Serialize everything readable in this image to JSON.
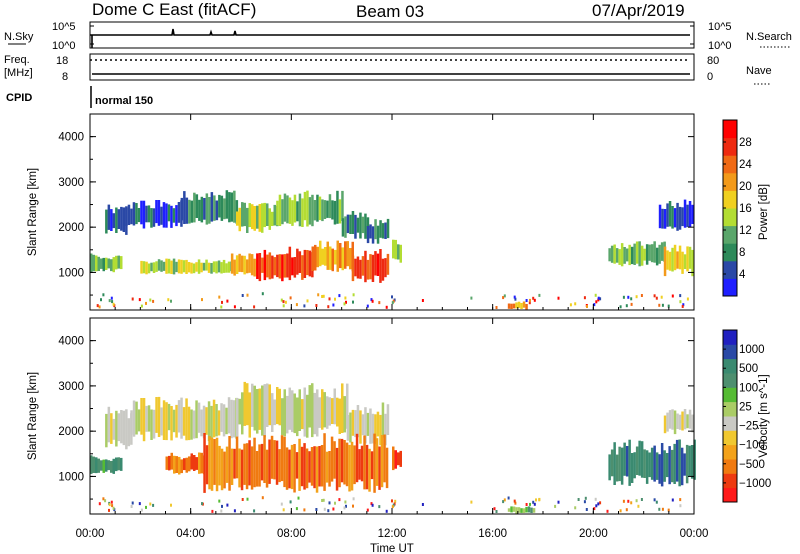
{
  "header": {
    "station": "Dome C East (fitACF)",
    "beam": "Beam 03",
    "date": "07/Apr/2019"
  },
  "top_panels": {
    "nsky_label": "N.Sky",
    "nsky_tick_top": "10^5",
    "nsky_tick_bottom": "10^0",
    "nsearch_label": "N.Search",
    "nsearch_tick_top": "10^5",
    "nsearch_tick_bottom": "10^0",
    "freq_label_1": "Freq.",
    "freq_label_2": "[MHz]",
    "freq_tick_top": "18",
    "freq_tick_bottom": "8",
    "nave_label": "Nave",
    "nave_tick_top": "80",
    "nave_tick_bottom": "0",
    "cpid_label": "CPID",
    "cpid_value": "normal 150"
  },
  "colors": {
    "power": [
      "#1f1fff",
      "#2a48a6",
      "#2d8a5a",
      "#5aa66b",
      "#b3dd33",
      "#f0d020",
      "#f39a1a",
      "#f06a15",
      "#ee2a10",
      "#ff0000"
    ],
    "velocity": [
      "#ff1a1a",
      "#ee3a10",
      "#f07a10",
      "#f3a21a",
      "#f0c830",
      "#c9c9c4",
      "#aacc66",
      "#55bb33",
      "#4d8f6f",
      "#3a8a70",
      "#2a4aa6",
      "#2020c0"
    ]
  },
  "chart_data": [
    {
      "type": "heatmap",
      "name": "power",
      "ylabel": "Slant Range [km]",
      "yticks": [
        "1000",
        "2000",
        "3000",
        "4000"
      ],
      "ylim": [
        170,
        4500
      ],
      "xlim": [
        0,
        24
      ],
      "colorbar_label": "Power [dB]",
      "colorbar_ticks": [
        "4",
        "8",
        "12",
        "16",
        "20",
        "24",
        "28"
      ],
      "regions": [
        {
          "x": [
            0.0,
            1.2
          ],
          "y": [
            1050,
            1350
          ],
          "level": 3
        },
        {
          "x": [
            0.6,
            1.4
          ],
          "y": [
            1900,
            2400
          ],
          "level": 1
        },
        {
          "x": [
            1.4,
            3.6
          ],
          "y": [
            2050,
            2500
          ],
          "level": 1
        },
        {
          "x": [
            3.6,
            5.8
          ],
          "y": [
            2150,
            2700
          ],
          "level": 2
        },
        {
          "x": [
            5.8,
            7.4
          ],
          "y": [
            1950,
            2450
          ],
          "level": 4
        },
        {
          "x": [
            7.4,
            10.0
          ],
          "y": [
            2100,
            2700
          ],
          "level": 3
        },
        {
          "x": [
            10.0,
            11.0
          ],
          "y": [
            1800,
            2300
          ],
          "level": 2
        },
        {
          "x": [
            11.0,
            11.8
          ],
          "y": [
            1700,
            2100
          ],
          "level": 2
        },
        {
          "x": [
            2.0,
            5.6
          ],
          "y": [
            1000,
            1250
          ],
          "level": 4
        },
        {
          "x": [
            5.6,
            6.6
          ],
          "y": [
            950,
            1350
          ],
          "level": 6
        },
        {
          "x": [
            6.6,
            8.8
          ],
          "y": [
            900,
            1450
          ],
          "level": 8
        },
        {
          "x": [
            8.8,
            10.4
          ],
          "y": [
            1100,
            1600
          ],
          "level": 6
        },
        {
          "x": [
            10.4,
            11.8
          ],
          "y": [
            850,
            1400
          ],
          "level": 8
        },
        {
          "x": [
            12.0,
            12.3
          ],
          "y": [
            1250,
            1650
          ],
          "level": 4
        },
        {
          "x": [
            20.6,
            22.8
          ],
          "y": [
            1200,
            1600
          ],
          "level": 3
        },
        {
          "x": [
            22.8,
            23.9
          ],
          "y": [
            1000,
            1500
          ],
          "level": 5
        },
        {
          "x": [
            22.6,
            23.9
          ],
          "y": [
            2000,
            2500
          ],
          "level": 1
        },
        {
          "x": [
            16.6,
            17.3
          ],
          "y": [
            200,
            330
          ],
          "level": 6
        }
      ]
    },
    {
      "type": "heatmap",
      "name": "velocity",
      "ylabel": "Slant Range [km]",
      "yticks": [
        "1000",
        "2000",
        "3000",
        "4000"
      ],
      "ylim": [
        170,
        4500
      ],
      "xlim": [
        0,
        24
      ],
      "xlabel": "Time UT",
      "xticks": [
        "00:00",
        "04:00",
        "08:00",
        "12:00",
        "16:00",
        "20:00",
        "00:00"
      ],
      "colorbar_label": "Velocity [m s^-1]",
      "colorbar_ticks": [
        "1000",
        "500",
        "100",
        "25",
        "−25",
        "−100",
        "−500",
        "−1000"
      ],
      "regions": [
        {
          "x": [
            0.0,
            1.2
          ],
          "y": [
            1100,
            1400
          ],
          "level": 8
        },
        {
          "x": [
            0.6,
            1.6
          ],
          "y": [
            1700,
            2400
          ],
          "level": 5
        },
        {
          "x": [
            1.6,
            5.8
          ],
          "y": [
            1900,
            2600
          ],
          "level": 5
        },
        {
          "x": [
            5.8,
            10.2
          ],
          "y": [
            2000,
            2900
          ],
          "level": 5
        },
        {
          "x": [
            10.2,
            11.8
          ],
          "y": [
            1800,
            2500
          ],
          "level": 5
        },
        {
          "x": [
            3.0,
            4.5
          ],
          "y": [
            1100,
            1450
          ],
          "level": 2
        },
        {
          "x": [
            4.5,
            11.8
          ],
          "y": [
            800,
            1750
          ],
          "level": 2
        },
        {
          "x": [
            12.0,
            12.3
          ],
          "y": [
            1200,
            1600
          ],
          "level": 1
        },
        {
          "x": [
            20.6,
            24.0
          ],
          "y": [
            900,
            1650
          ],
          "level": 9
        },
        {
          "x": [
            22.8,
            23.9
          ],
          "y": [
            2000,
            2400
          ],
          "level": 5
        },
        {
          "x": [
            16.6,
            17.6
          ],
          "y": [
            200,
            320
          ],
          "level": 7
        }
      ]
    }
  ]
}
